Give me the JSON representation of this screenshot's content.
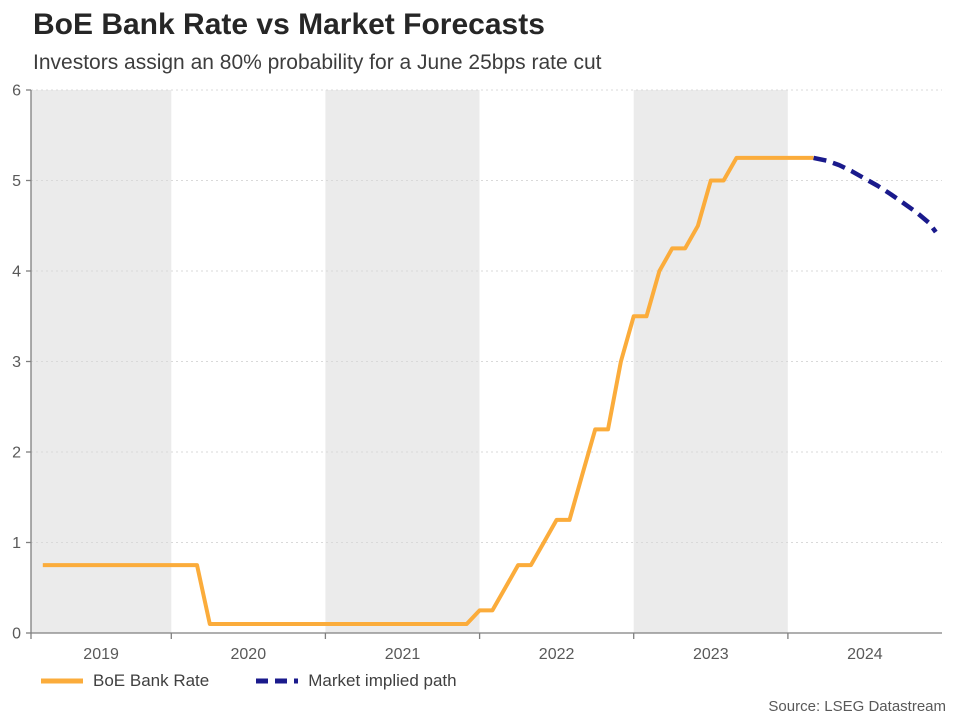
{
  "chart_data": {
    "type": "line",
    "title": "BoE Bank Rate vs Market Forecasts",
    "subtitle": "Investors assign an 80% probability for a June 25bps rate cut",
    "source": "Source: LSEG Datastream",
    "xlabel": "",
    "ylabel": "",
    "x_range": [
      2019.09,
      2025.0
    ],
    "ylim": [
      0,
      6
    ],
    "yticks": [
      0,
      1,
      2,
      3,
      4,
      5,
      6
    ],
    "x_ticks": [
      2019.09,
      2020,
      2021,
      2022,
      2023,
      2024
    ],
    "x_labels": [
      {
        "text": "2019",
        "center": 2019.545
      },
      {
        "text": "2020",
        "center": 2020.5
      },
      {
        "text": "2021",
        "center": 2021.5
      },
      {
        "text": "2022",
        "center": 2022.5
      },
      {
        "text": "2023",
        "center": 2023.5
      },
      {
        "text": "2024",
        "center": 2024.5
      }
    ],
    "shaded_spans": [
      [
        2019.09,
        2020
      ],
      [
        2021,
        2022
      ],
      [
        2023,
        2024
      ]
    ],
    "grid": "dashed-horizontal",
    "legend_position": "bottom-left",
    "colors": {
      "band": "#ebebeb",
      "grid": "#d9d9d9",
      "axis": "#7f7f7f",
      "tick_label": "#595959"
    },
    "series": [
      {
        "name": "BoE Bank Rate",
        "color": "#fbac3b",
        "style": "solid",
        "width": 4,
        "dash": null,
        "points": [
          [
            2019.1667,
            0.75
          ],
          [
            2020.1667,
            0.75
          ],
          [
            2020.25,
            0.1
          ],
          [
            2021.9167,
            0.1
          ],
          [
            2022.0,
            0.25
          ],
          [
            2022.0833,
            0.25
          ],
          [
            2022.1667,
            0.5
          ],
          [
            2022.25,
            0.75
          ],
          [
            2022.3333,
            0.75
          ],
          [
            2022.4167,
            1.0
          ],
          [
            2022.5,
            1.25
          ],
          [
            2022.5833,
            1.25
          ],
          [
            2022.6667,
            1.75
          ],
          [
            2022.75,
            2.25
          ],
          [
            2022.8333,
            2.25
          ],
          [
            2022.9167,
            3.0
          ],
          [
            2023.0,
            3.5
          ],
          [
            2023.0833,
            3.5
          ],
          [
            2023.1667,
            4.0
          ],
          [
            2023.25,
            4.25
          ],
          [
            2023.3333,
            4.25
          ],
          [
            2023.4167,
            4.5
          ],
          [
            2023.5,
            5.0
          ],
          [
            2023.5833,
            5.0
          ],
          [
            2023.6667,
            5.25
          ],
          [
            2024.1667,
            5.25
          ]
        ]
      },
      {
        "name": "Market implied path",
        "color": "#1a1a8c",
        "style": "dashed",
        "width": 4.5,
        "dash": [
          13,
          7
        ],
        "points": [
          [
            2024.1667,
            5.25
          ],
          [
            2024.25,
            5.22
          ],
          [
            2024.3333,
            5.17
          ],
          [
            2024.4167,
            5.1
          ],
          [
            2024.5,
            5.02
          ],
          [
            2024.5833,
            4.94
          ],
          [
            2024.6667,
            4.85
          ],
          [
            2024.75,
            4.75
          ],
          [
            2024.8333,
            4.65
          ],
          [
            2024.9167,
            4.53
          ],
          [
            2024.96,
            4.43
          ]
        ]
      }
    ]
  }
}
